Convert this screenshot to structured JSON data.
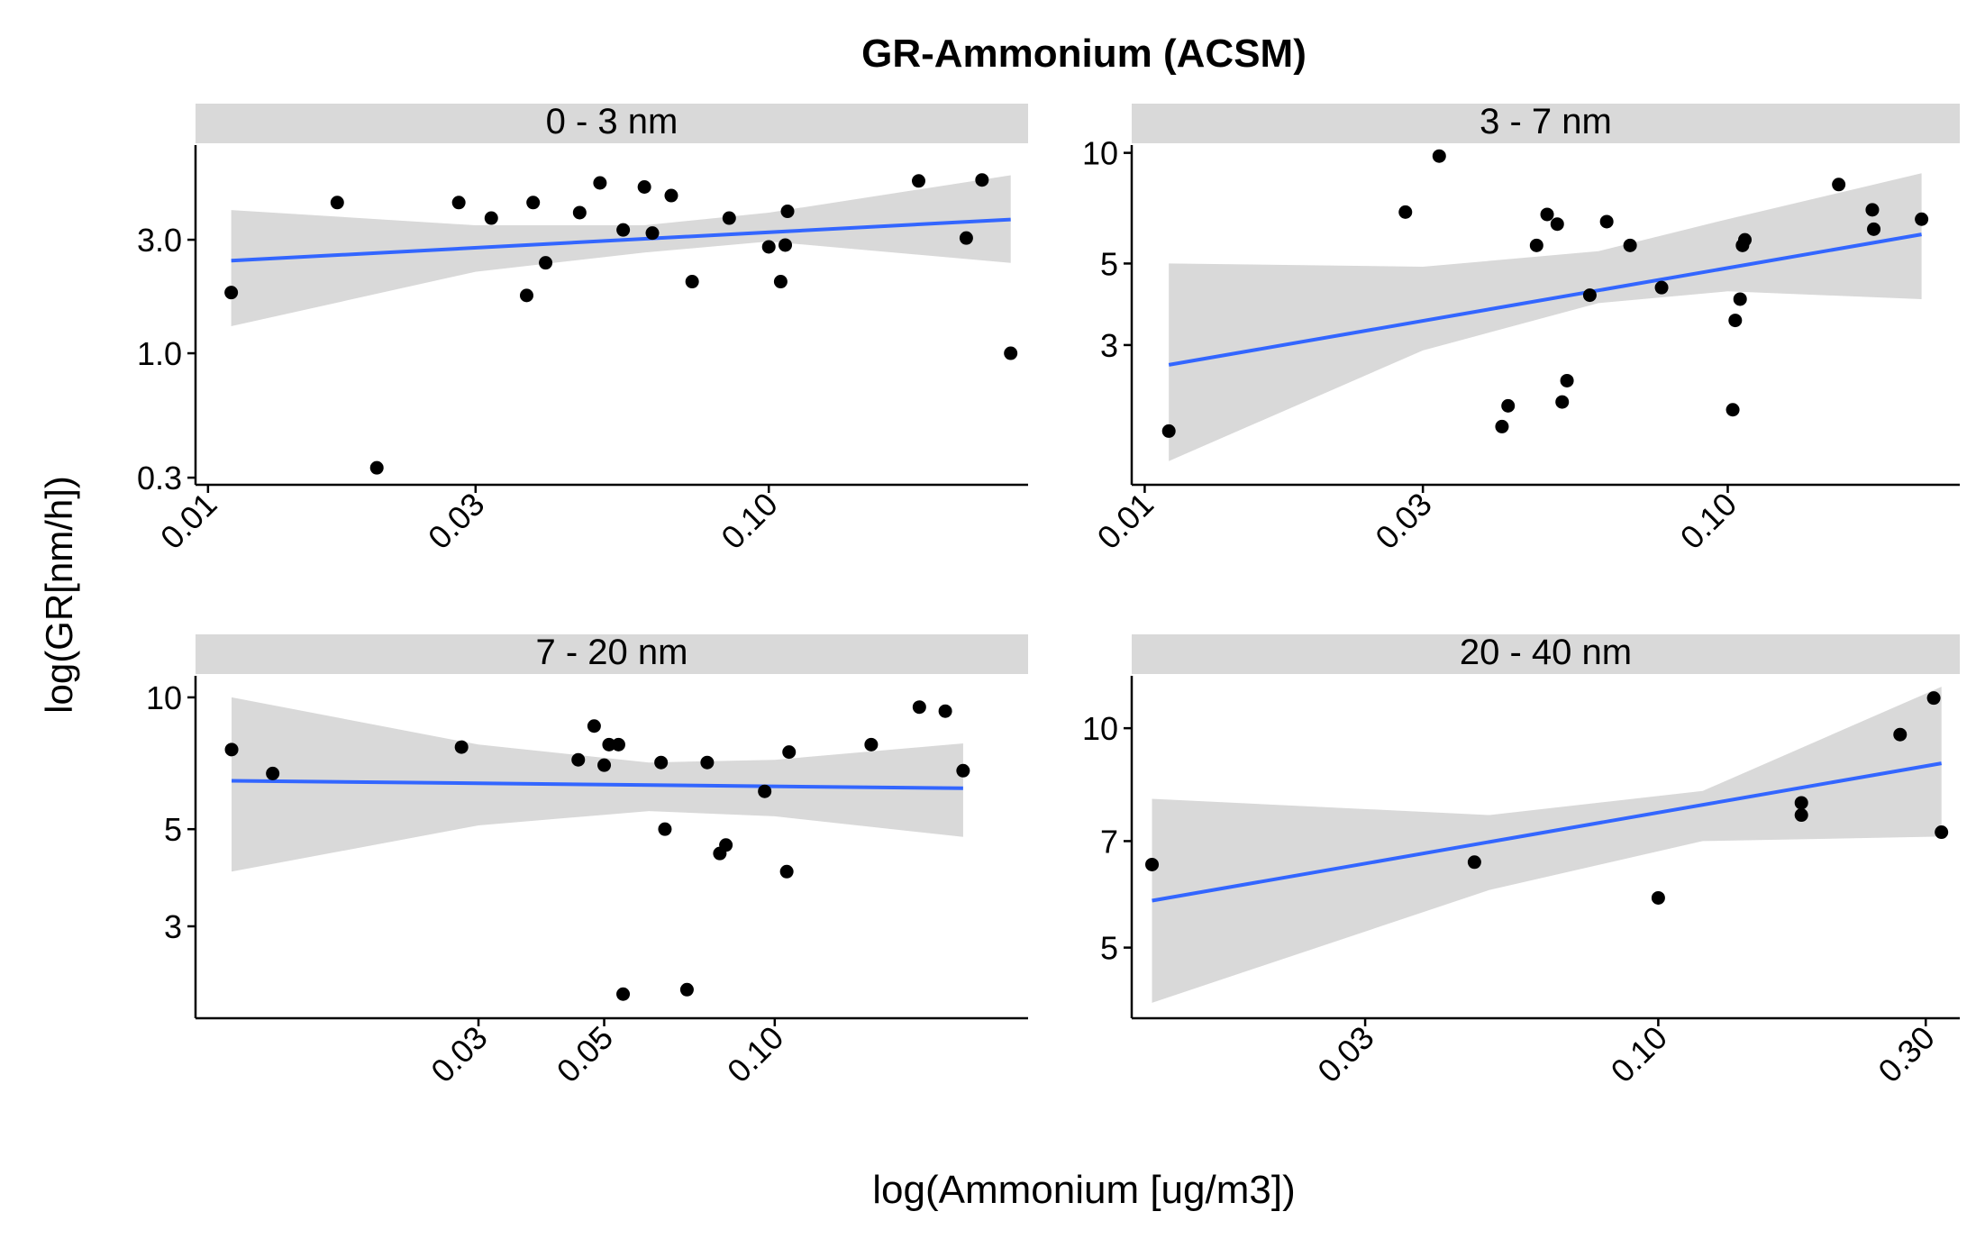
{
  "title": "GR-Ammonium (ACSM)",
  "xlabel": "log(Ammonium [ug/m3])",
  "ylabel": "log(GR[nm/h])",
  "colors": {
    "points": "#000000",
    "fit_line": "#3366ff",
    "ribbon": "#d9d9d9",
    "strip": "#d9d9d9"
  },
  "chart_data": [
    {
      "type": "scatter",
      "panel": "0 - 3 nm",
      "x_scale": "log10",
      "y_scale": "log10",
      "xlim": [
        0.0095,
        0.29
      ],
      "ylim": [
        0.28,
        7.5
      ],
      "xticks": [
        {
          "value": 0.01,
          "label": "0.01"
        },
        {
          "value": 0.03,
          "label": "0.03"
        },
        {
          "value": 0.1,
          "label": "0.10"
        }
      ],
      "yticks": [
        {
          "value": 0.3,
          "label": "0.3"
        },
        {
          "value": 1.0,
          "label": "1.0"
        },
        {
          "value": 3.0,
          "label": "3.0"
        }
      ],
      "x": [
        0.011,
        0.017,
        0.02,
        0.028,
        0.032,
        0.037,
        0.038,
        0.04,
        0.046,
        0.05,
        0.055,
        0.06,
        0.062,
        0.067,
        0.073,
        0.085,
        0.1,
        0.105,
        0.107,
        0.108,
        0.185,
        0.225,
        0.24,
        0.27
      ],
      "y": [
        1.8,
        4.3,
        0.33,
        4.3,
        3.7,
        1.75,
        4.3,
        2.4,
        3.9,
        5.2,
        3.3,
        5.0,
        3.2,
        4.6,
        2.0,
        3.7,
        2.8,
        2.0,
        2.85,
        3.95,
        5.3,
        3.05,
        5.35,
        1.0
      ],
      "fit": {
        "x": [
          0.011,
          0.27
        ],
        "y": [
          2.45,
          3.65
        ]
      },
      "ribbon": {
        "x": [
          0.011,
          0.03,
          0.06,
          0.1,
          0.27
        ],
        "upper": [
          4.0,
          3.45,
          3.45,
          3.9,
          5.6
        ],
        "lower": [
          1.3,
          2.2,
          2.65,
          2.95,
          2.4
        ]
      }
    },
    {
      "type": "scatter",
      "panel": "3 - 7 nm",
      "x_scale": "log10",
      "y_scale": "log10",
      "xlim": [
        0.0095,
        0.25
      ],
      "ylim": [
        1.25,
        10.5
      ],
      "xticks": [
        {
          "value": 0.01,
          "label": "0.01"
        },
        {
          "value": 0.03,
          "label": "0.03"
        },
        {
          "value": 0.1,
          "label": "0.10"
        }
      ],
      "yticks": [
        {
          "value": 3,
          "label": "3"
        },
        {
          "value": 5,
          "label": "5"
        },
        {
          "value": 10,
          "label": "10"
        }
      ],
      "x": [
        0.011,
        0.028,
        0.032,
        0.041,
        0.042,
        0.047,
        0.049,
        0.051,
        0.052,
        0.053,
        0.058,
        0.062,
        0.068,
        0.077,
        0.102,
        0.103,
        0.105,
        0.106,
        0.107,
        0.155,
        0.177,
        0.178,
        0.215
      ],
      "y": [
        1.75,
        6.9,
        9.8,
        1.8,
        2.05,
        5.6,
        6.8,
        6.4,
        2.1,
        2.4,
        4.1,
        6.5,
        5.6,
        4.3,
        2.0,
        3.5,
        4.0,
        5.6,
        5.8,
        8.2,
        7.0,
        6.2,
        6.6
      ],
      "fit": {
        "x": [
          0.011,
          0.215
        ],
        "y": [
          2.65,
          6.0
        ]
      },
      "ribbon": {
        "x": [
          0.011,
          0.03,
          0.06,
          0.1,
          0.215
        ],
        "upper": [
          5.0,
          4.9,
          5.4,
          6.6,
          8.8
        ],
        "lower": [
          1.45,
          2.9,
          3.9,
          4.2,
          4.0
        ]
      }
    },
    {
      "type": "scatter",
      "panel": "7 - 20 nm",
      "x_scale": "log10",
      "y_scale": "log10",
      "xlim": [
        0.0095,
        0.28
      ],
      "ylim": [
        1.85,
        11.2
      ],
      "xticks": [
        {
          "value": 0.03,
          "label": "0.03"
        },
        {
          "value": 0.05,
          "label": "0.05"
        },
        {
          "value": 0.1,
          "label": "0.10"
        }
      ],
      "yticks": [
        {
          "value": 3,
          "label": "3"
        },
        {
          "value": 5,
          "label": "5"
        },
        {
          "value": 10,
          "label": "10"
        }
      ],
      "x": [
        0.011,
        0.013,
        0.028,
        0.045,
        0.048,
        0.05,
        0.051,
        0.053,
        0.054,
        0.063,
        0.064,
        0.07,
        0.076,
        0.08,
        0.082,
        0.096,
        0.105,
        0.106,
        0.148,
        0.18,
        0.2,
        0.215
      ],
      "y": [
        7.6,
        6.7,
        7.7,
        7.2,
        8.6,
        7.0,
        7.8,
        7.8,
        2.1,
        7.1,
        5.0,
        2.15,
        7.1,
        4.4,
        4.6,
        6.1,
        4.0,
        7.5,
        7.8,
        9.5,
        9.3,
        6.8
      ],
      "fit": {
        "x": [
          0.011,
          0.215
        ],
        "y": [
          6.45,
          6.2
        ]
      },
      "ribbon": {
        "x": [
          0.011,
          0.03,
          0.06,
          0.1,
          0.215
        ],
        "upper": [
          10.0,
          7.8,
          7.1,
          7.2,
          7.85
        ],
        "lower": [
          4.0,
          5.1,
          5.5,
          5.35,
          4.8
        ]
      }
    },
    {
      "type": "scatter",
      "panel": "20 - 40 nm",
      "x_scale": "log10",
      "y_scale": "log10",
      "xlim": [
        0.0115,
        0.345
      ],
      "ylim": [
        4.0,
        11.8
      ],
      "xticks": [
        {
          "value": 0.03,
          "label": "0.03"
        },
        {
          "value": 0.1,
          "label": "0.10"
        },
        {
          "value": 0.3,
          "label": "0.30"
        }
      ],
      "yticks": [
        {
          "value": 5,
          "label": "5"
        },
        {
          "value": 7,
          "label": "7"
        },
        {
          "value": 10,
          "label": "10"
        }
      ],
      "x": [
        0.0125,
        0.047,
        0.1,
        0.18,
        0.18,
        0.27,
        0.31,
        0.32
      ],
      "y": [
        6.5,
        6.55,
        5.85,
        7.9,
        7.6,
        9.8,
        11.0,
        7.2
      ],
      "fit": {
        "x": [
          0.0125,
          0.32
        ],
        "y": [
          5.8,
          8.95
        ]
      },
      "ribbon": {
        "x": [
          0.0125,
          0.05,
          0.12,
          0.32
        ],
        "upper": [
          8.0,
          7.6,
          8.2,
          11.4
        ],
        "lower": [
          4.2,
          6.0,
          7.0,
          7.1
        ]
      }
    }
  ]
}
